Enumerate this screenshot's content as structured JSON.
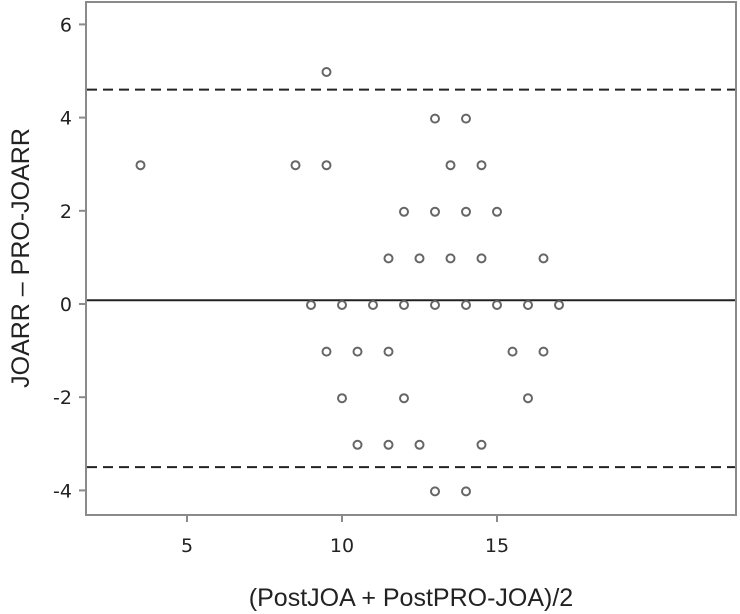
{
  "chart_data": {
    "type": "scatter",
    "title": "",
    "xlabel": "(PostJOA + PostPRO-JOA)/2",
    "ylabel": "JOARR – PRO-JOARR",
    "xlim": [
      1.5,
      18.3
    ],
    "ylim": [
      -4.7,
      6.5
    ],
    "xticks": [
      5,
      10,
      15
    ],
    "yticks": [
      6,
      4,
      2,
      0,
      -2,
      -4
    ],
    "grid": false,
    "legend": null,
    "marker": "open-circle",
    "reference_lines": [
      {
        "name": "upper-limit-of-agreement",
        "y": 4.6,
        "style": "dashed"
      },
      {
        "name": "mean-difference",
        "y": 0.08,
        "style": "solid"
      },
      {
        "name": "lower-limit-of-agreement",
        "y": -3.5,
        "style": "dashed"
      }
    ],
    "points": [
      {
        "x": 9.5,
        "y": 5
      },
      {
        "x": 13,
        "y": 4
      },
      {
        "x": 14,
        "y": 4
      },
      {
        "x": 3.5,
        "y": 3
      },
      {
        "x": 8.5,
        "y": 3
      },
      {
        "x": 9.5,
        "y": 3
      },
      {
        "x": 13.5,
        "y": 3
      },
      {
        "x": 14.5,
        "y": 3
      },
      {
        "x": 12,
        "y": 2
      },
      {
        "x": 13,
        "y": 2
      },
      {
        "x": 14,
        "y": 2
      },
      {
        "x": 15,
        "y": 2
      },
      {
        "x": 11.5,
        "y": 1
      },
      {
        "x": 12.5,
        "y": 1
      },
      {
        "x": 13.5,
        "y": 1
      },
      {
        "x": 14.5,
        "y": 1
      },
      {
        "x": 16.5,
        "y": 1
      },
      {
        "x": 9,
        "y": 0
      },
      {
        "x": 10,
        "y": 0
      },
      {
        "x": 11,
        "y": 0
      },
      {
        "x": 12,
        "y": 0
      },
      {
        "x": 13,
        "y": 0
      },
      {
        "x": 14,
        "y": 0
      },
      {
        "x": 15,
        "y": 0
      },
      {
        "x": 16,
        "y": 0
      },
      {
        "x": 17,
        "y": 0
      },
      {
        "x": 9.5,
        "y": -1
      },
      {
        "x": 10.5,
        "y": -1
      },
      {
        "x": 11.5,
        "y": -1
      },
      {
        "x": 15.5,
        "y": -1
      },
      {
        "x": 16.5,
        "y": -1
      },
      {
        "x": 10,
        "y": -2
      },
      {
        "x": 12,
        "y": -2
      },
      {
        "x": 16,
        "y": -2
      },
      {
        "x": 10.5,
        "y": -3
      },
      {
        "x": 11.5,
        "y": -3
      },
      {
        "x": 12.5,
        "y": -3
      },
      {
        "x": 14.5,
        "y": -3
      },
      {
        "x": 13,
        "y": -4
      },
      {
        "x": 14,
        "y": -4
      }
    ]
  },
  "colors": {
    "axis": "#8a8a8a",
    "reference_line": "#222222",
    "marker_stroke": "#666666",
    "background": "#ffffff"
  }
}
